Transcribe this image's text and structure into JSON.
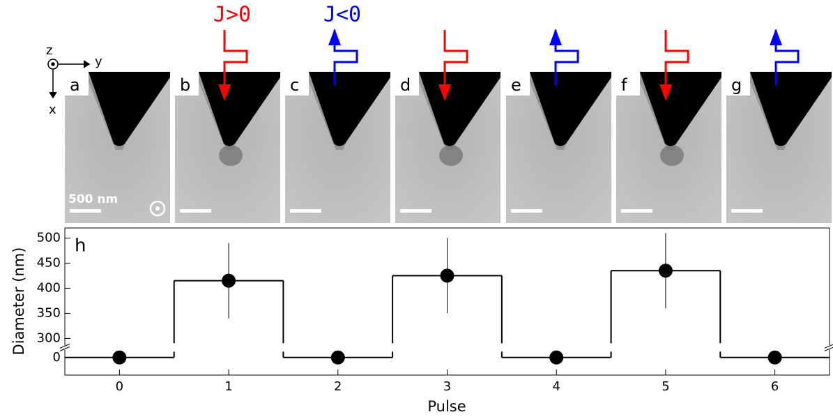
{
  "figure": {
    "axes_labels": {
      "x": "x",
      "y": "y",
      "z": "z"
    },
    "panels": [
      "a",
      "b",
      "c",
      "d",
      "e",
      "f",
      "g"
    ],
    "scale_bar": "500 nm",
    "current_labels": {
      "positive": "J>0",
      "negative": "J<0"
    }
  },
  "chart_data": {
    "type": "step",
    "panel_label": "h",
    "x_label": "Pulse",
    "y_label": "Diameter (nm)",
    "x": [
      0,
      1,
      2,
      3,
      4,
      5,
      6
    ],
    "values": [
      0,
      415,
      0,
      425,
      0,
      435,
      0
    ],
    "errors": [
      null,
      75,
      null,
      75,
      null,
      75,
      null
    ],
    "color": "#000000",
    "xlim": [
      -0.5,
      6.5
    ],
    "xticks": [
      0,
      1,
      2,
      3,
      4,
      5,
      6
    ],
    "ylim": [
      -35,
      520
    ],
    "ybreak": [
      20,
      282
    ],
    "yticks": [
      0,
      300,
      350,
      400,
      450,
      500
    ]
  }
}
